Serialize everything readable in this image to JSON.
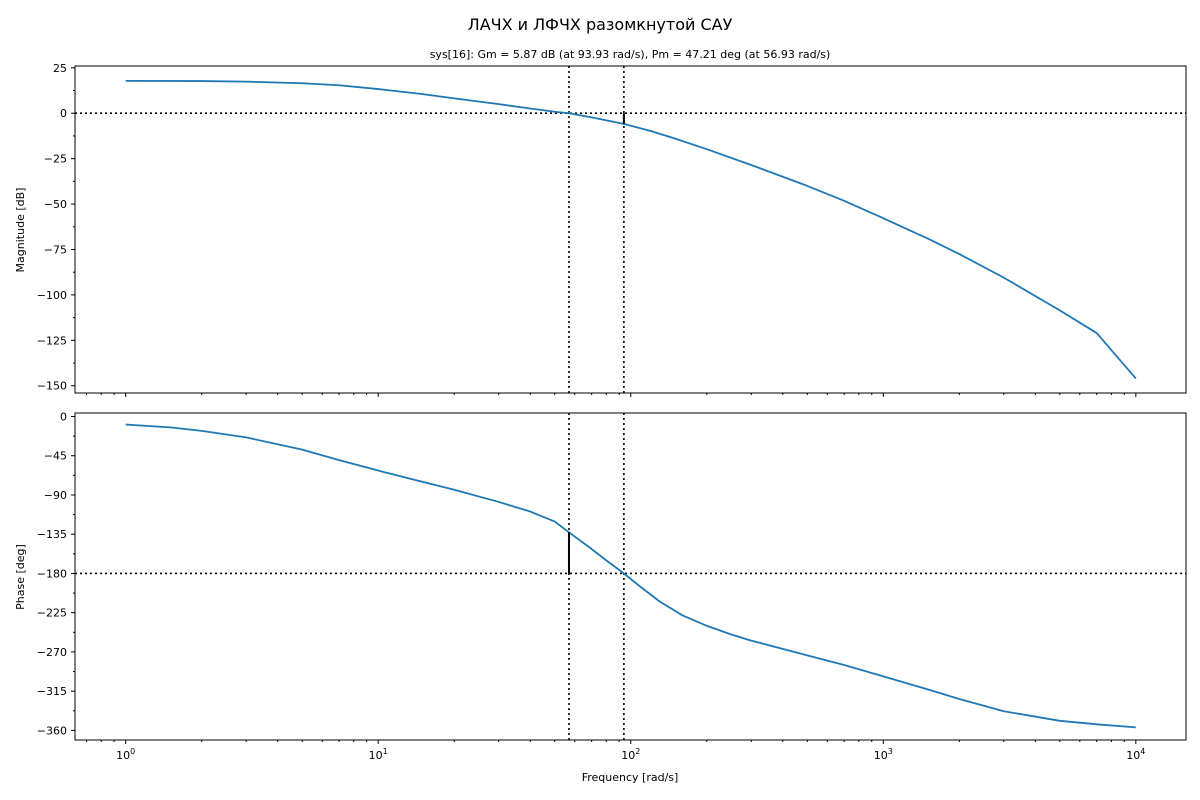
{
  "figure": {
    "suptitle": "ЛАЧХ и ЛФЧХ разомкнутой САУ",
    "subtitle": "sys[16]: Gm = 5.87 dB (at 93.93 rad/s), Pm = 47.21 deg (at 56.93 rad/s)",
    "xlabel": "Frequency [rad/s]"
  },
  "chart_data": [
    {
      "type": "line",
      "name": "magnitude",
      "ylabel": "Magnitude [dB]",
      "xscale": "log",
      "xlim": [
        0.63,
        15800
      ],
      "ylim": [
        -154,
        26
      ],
      "yticks": [
        25,
        0,
        -25,
        -50,
        -75,
        -100,
        -125,
        -150
      ],
      "ytick_labels": [
        "25",
        "0",
        "−25",
        "−50",
        "−75",
        "−100",
        "−125",
        "−150"
      ],
      "color": "#1f77b4",
      "grid": false,
      "x": [
        1,
        2,
        3,
        5,
        7,
        10,
        15,
        20,
        30,
        40,
        50,
        56.93,
        70,
        93.93,
        120,
        150,
        200,
        300,
        500,
        700,
        1000,
        1500,
        2000,
        3000,
        5000,
        7000,
        10000
      ],
      "y": [
        17.8,
        17.7,
        17.4,
        16.5,
        15.4,
        13.3,
        10.5,
        8.2,
        5.0,
        2.6,
        0.8,
        0.0,
        -2.3,
        -5.87,
        -9.8,
        -14.0,
        -19.8,
        -28.5,
        -40.0,
        -48.2,
        -57.8,
        -69.0,
        -77.5,
        -90.5,
        -108.5,
        -121.0,
        -146.0
      ],
      "hlines": [
        0
      ],
      "vlines": [
        56.93,
        93.93
      ],
      "margin_marker": {
        "x": 93.93,
        "y_from": 0,
        "y_to": -5.87
      }
    },
    {
      "type": "line",
      "name": "phase",
      "ylabel": "Phase [deg]",
      "xscale": "log",
      "xlim": [
        0.63,
        15800
      ],
      "ylim": [
        -371,
        4
      ],
      "yticks": [
        0,
        -45,
        -90,
        -135,
        -180,
        -225,
        -270,
        -315,
        -360
      ],
      "ytick_labels": [
        "0",
        "−45",
        "−90",
        "−135",
        "−180",
        "−225",
        "−270",
        "−315",
        "−360"
      ],
      "color": "#1f77b4",
      "grid": false,
      "x": [
        1,
        1.5,
        2,
        3,
        5,
        7,
        10,
        15,
        20,
        30,
        40,
        50,
        56.93,
        70,
        80,
        93.93,
        110,
        130,
        160,
        200,
        250,
        300,
        500,
        700,
        1000,
        1500,
        2000,
        3000,
        5000,
        7000,
        10000
      ],
      "y": [
        -9.2,
        -12.5,
        -16.5,
        -24,
        -38,
        -50,
        -62,
        -75,
        -84,
        -98,
        -109,
        -120.5,
        -132.8,
        -152,
        -165,
        -180,
        -196,
        -212,
        -228,
        -240,
        -250,
        -257,
        -274,
        -285,
        -298,
        -313,
        -324,
        -338,
        -349,
        -353,
        -356.5
      ],
      "hlines": [
        -180
      ],
      "vlines": [
        56.93,
        93.93
      ],
      "margin_marker": {
        "x": 56.93,
        "y_from": -180,
        "y_to": -132.79
      }
    }
  ],
  "xaxis": {
    "ticks": [
      1,
      10,
      100,
      1000,
      10000
    ],
    "base_labels": [
      "10",
      "10",
      "10",
      "10",
      "10"
    ],
    "exp_labels": [
      "0",
      "1",
      "2",
      "3",
      "4"
    ]
  }
}
